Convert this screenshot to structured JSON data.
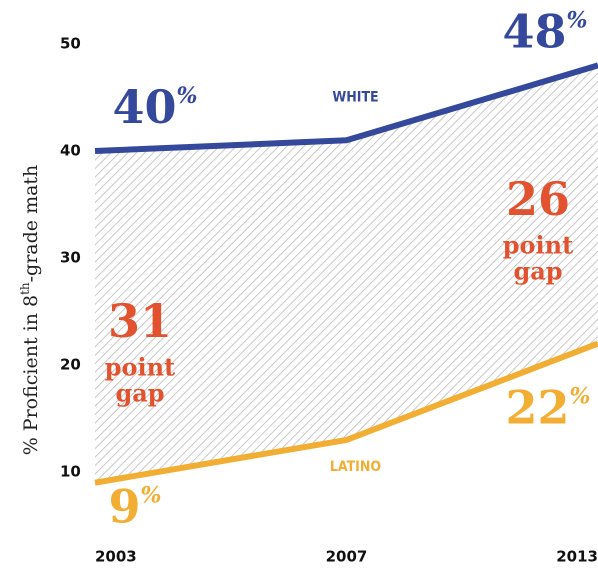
{
  "chart_data": {
    "type": "line",
    "categories": [
      "2003",
      "2007",
      "2013"
    ],
    "series": [
      {
        "name": "WHITE",
        "color": "#34499b",
        "values": [
          40,
          41,
          48
        ],
        "value_labels": [
          "40%",
          null,
          "48%"
        ]
      },
      {
        "name": "LATINO",
        "color": "#f2ae33",
        "values": [
          9,
          13,
          22
        ],
        "value_labels": [
          "9%",
          null,
          "22%"
        ]
      }
    ],
    "ylim": [
      5,
      52
    ],
    "yticks": [
      10,
      20,
      30,
      40,
      50
    ],
    "y_axis_label": "% Proficient in 8th-grade math",
    "annotations": [
      [
        "31",
        "point",
        "gap"
      ],
      [
        "26",
        "point",
        "gap"
      ]
    ],
    "annotation_color": "#e2522f"
  }
}
